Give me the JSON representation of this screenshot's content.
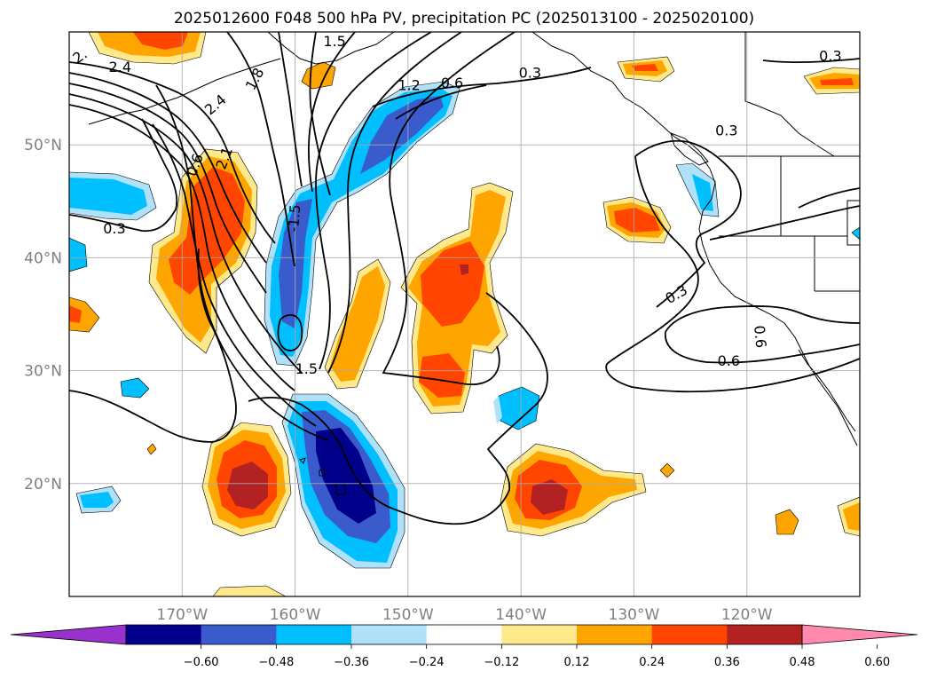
{
  "title": "2025012600 F048 500 hPa PV, precipitation PC (2025013100 - 2025020100)",
  "map": {
    "lon_range": [
      -180,
      -110
    ],
    "lat_range": [
      10,
      60
    ],
    "lon_ticks": [
      {
        "lon": -170,
        "label": "170°W"
      },
      {
        "lon": -160,
        "label": "160°W"
      },
      {
        "lon": -150,
        "label": "150°W"
      },
      {
        "lon": -140,
        "label": "140°W"
      },
      {
        "lon": -130,
        "label": "130°W"
      },
      {
        "lon": -120,
        "label": "120°W"
      }
    ],
    "lat_ticks": [
      {
        "lat": 50,
        "label": "50°N"
      },
      {
        "lat": 40,
        "label": "40°N"
      },
      {
        "lat": 30,
        "label": "30°N"
      },
      {
        "lat": 20,
        "label": "20°N"
      }
    ],
    "grid": true
  },
  "colorbar": {
    "colors": [
      "#9932cc",
      "#00008b",
      "#3a5bcc",
      "#00bfff",
      "#afe1fa",
      "#ffffff",
      "#ffe98a",
      "#ffa500",
      "#ff4500",
      "#b22222",
      "#ff8aad"
    ],
    "tick_labels": [
      "−0.60",
      "−0.48",
      "−0.36",
      "−0.24",
      "−0.12",
      "0.12",
      "0.24",
      "0.36",
      "0.48",
      "0.60"
    ],
    "extend": "both"
  },
  "contour_labels": [
    {
      "text": "2.",
      "lon": -179,
      "lat": 57.8,
      "rot": -35
    },
    {
      "text": "2.4",
      "lon": -175.5,
      "lat": 56.8,
      "rot": 0
    },
    {
      "text": "2.4",
      "lon": -167,
      "lat": 53.5,
      "rot": -40
    },
    {
      "text": "1.8",
      "lon": -163.5,
      "lat": 55.8,
      "rot": -62
    },
    {
      "text": "1.5",
      "lon": -156.5,
      "lat": 59.1,
      "rot": 0
    },
    {
      "text": "2.1",
      "lon": -166.2,
      "lat": 48.8,
      "rot": -70
    },
    {
      "text": "0.6",
      "lon": -168.8,
      "lat": 48.2,
      "rot": -70
    },
    {
      "text": "0.3",
      "lon": -176,
      "lat": 42.5,
      "rot": 0
    },
    {
      "text": "-1.5",
      "lon": -160,
      "lat": 43.5,
      "rot": -85
    },
    {
      "text": "1.5",
      "lon": -159,
      "lat": 30.1,
      "rot": 0
    },
    {
      "text": "1.2",
      "lon": -149.9,
      "lat": 55.2,
      "rot": 0
    },
    {
      "text": "0.6",
      "lon": -146.1,
      "lat": 55.4,
      "rot": 0
    },
    {
      "text": "0.3",
      "lon": -139.2,
      "lat": 56.3,
      "rot": 0
    },
    {
      "text": "0.3",
      "lon": -112.6,
      "lat": 57.8,
      "rot": 0
    },
    {
      "text": "0.3",
      "lon": -121.8,
      "lat": 51.2,
      "rot": 0
    },
    {
      "text": "0.3",
      "lon": -126.2,
      "lat": 36.7,
      "rot": -30
    },
    {
      "text": "0.6",
      "lon": -121.6,
      "lat": 30.8,
      "rot": 0
    },
    {
      "text": "0.6",
      "lon": -118.9,
      "lat": 33.0,
      "rot": 85
    }
  ]
}
